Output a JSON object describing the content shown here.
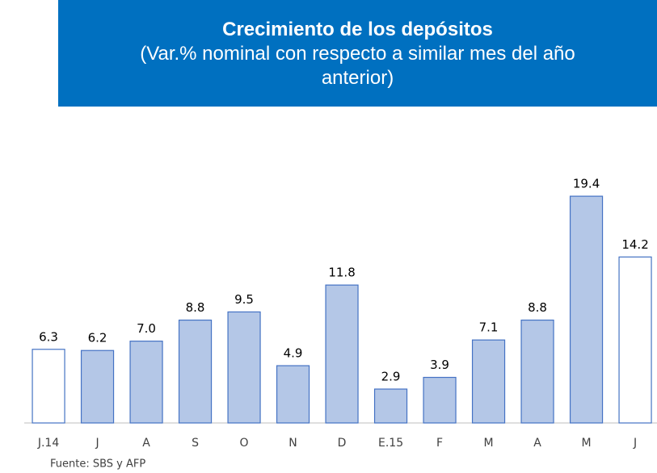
{
  "chart_data": {
    "type": "bar",
    "title": "Crecimiento de los depósitos",
    "subtitle": "(Var.% nominal con respecto a similar mes del año anterior)",
    "source": "Fuente: SBS y AFP",
    "categories": [
      "J.14",
      "J",
      "A",
      "S",
      "O",
      "N",
      "D",
      "E.15",
      "F",
      "M",
      "A",
      "M",
      "J"
    ],
    "values": [
      6.3,
      6.2,
      7.0,
      8.8,
      9.5,
      4.9,
      11.8,
      2.9,
      3.9,
      7.1,
      8.8,
      19.4,
      14.2
    ],
    "value_labels": [
      "6.3",
      "6.2",
      "7.0",
      "8.8",
      "9.5",
      "4.9",
      "11.8",
      "2.9",
      "3.9",
      "7.1",
      "8.8",
      "19.4",
      "14.2"
    ],
    "colors": [
      "#ffffff",
      "#b4c7e7",
      "#b4c7e7",
      "#b4c7e7",
      "#b4c7e7",
      "#b4c7e7",
      "#b4c7e7",
      "#b4c7e7",
      "#b4c7e7",
      "#b4c7e7",
      "#b4c7e7",
      "#b4c7e7",
      "#ffffff"
    ],
    "border_color": "#4472c4",
    "ylim": [
      0,
      20
    ]
  }
}
